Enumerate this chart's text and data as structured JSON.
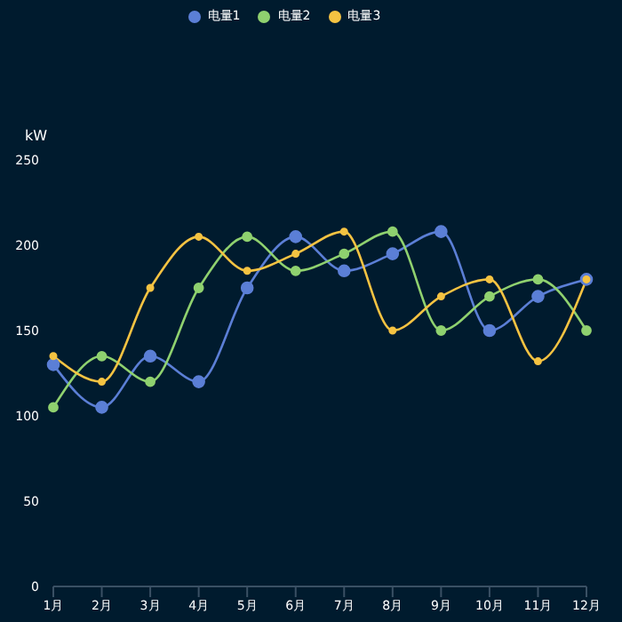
{
  "chart_data": {
    "type": "line",
    "ylabel": "kW",
    "categories": [
      "1月",
      "2月",
      "3月",
      "4月",
      "5月",
      "6月",
      "7月",
      "8月",
      "9月",
      "10月",
      "11月",
      "12月"
    ],
    "series": [
      {
        "name": "电量1",
        "color": "#5b7fd6",
        "values": [
          130,
          105,
          135,
          120,
          175,
          205,
          185,
          195,
          208,
          150,
          170,
          180
        ]
      },
      {
        "name": "电量2",
        "color": "#8fd16f",
        "values": [
          105,
          135,
          120,
          175,
          205,
          185,
          195,
          208,
          150,
          170,
          180,
          150
        ]
      },
      {
        "name": "电量3",
        "color": "#f5c342",
        "values": [
          135,
          120,
          175,
          205,
          185,
          195,
          208,
          150,
          170,
          180,
          132,
          180
        ]
      }
    ],
    "ylim": [
      0,
      250
    ],
    "yticks": [
      0,
      50,
      100,
      150,
      200,
      250
    ],
    "grid": false,
    "legend": "top",
    "marker": "circle",
    "line_style": "solid"
  }
}
